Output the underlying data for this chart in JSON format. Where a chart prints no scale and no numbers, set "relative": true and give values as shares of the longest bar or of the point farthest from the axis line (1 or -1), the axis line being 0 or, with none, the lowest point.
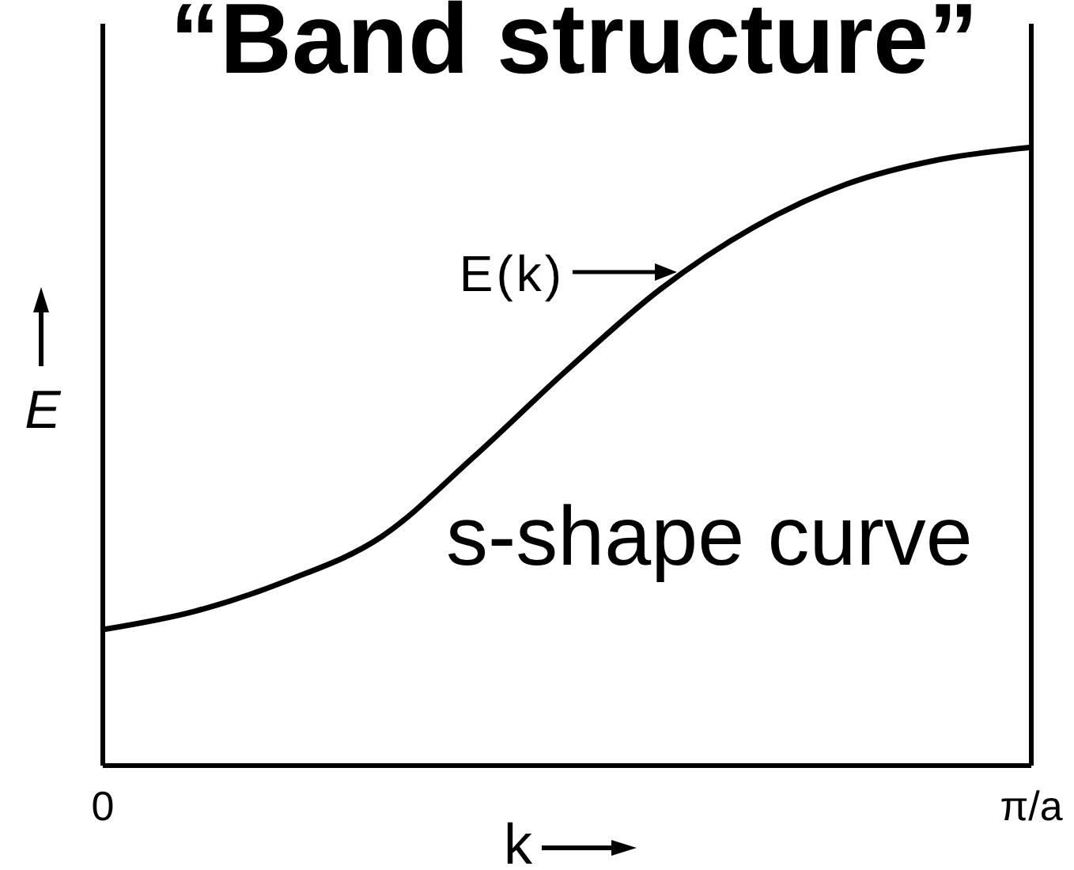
{
  "chart_data": {
    "type": "line",
    "title": "“Band structure”",
    "xlabel": "k",
    "ylabel": "E",
    "relative": true,
    "marker": "none",
    "categories": [
      "0",
      null,
      null,
      null,
      null,
      null,
      null,
      null,
      null,
      null,
      "π/a"
    ],
    "series": [
      {
        "color": "#000000",
        "values": [
          0.22,
          0.25,
          0.3,
          0.37,
          0.5,
          0.64,
          0.77,
          0.87,
          0.94,
          0.98,
          1
        ]
      }
    ],
    "annotations": [
      "E(k)",
      "s-shape curve"
    ]
  }
}
